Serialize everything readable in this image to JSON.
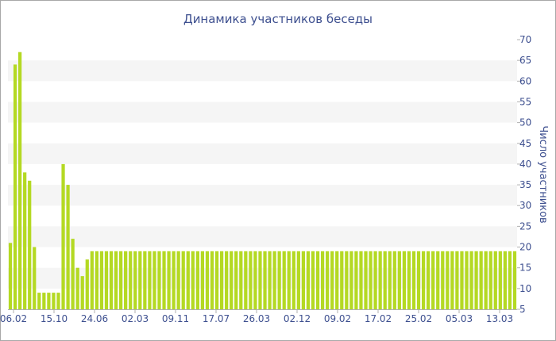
{
  "chart_data": {
    "type": "bar",
    "title": "Динамика участников беседы",
    "xlabel": "",
    "ylabel": "Число участников",
    "ylim": [
      5,
      70
    ],
    "y_ticks": [
      5,
      10,
      15,
      20,
      25,
      30,
      35,
      40,
      45,
      50,
      55,
      60,
      65,
      70
    ],
    "x_tick_labels": [
      "06.02",
      "15.10",
      "24.06",
      "02.03",
      "09.11",
      "17.07",
      "26.03",
      "02.12",
      "09.02",
      "17.02",
      "25.02",
      "05.03",
      "13.03"
    ],
    "grid": "horizontal bands",
    "legend": "none",
    "bar_color": "#b4d923",
    "band_color": "#f5f5f5",
    "text_color": "#3d4f8f",
    "values": [
      21,
      64,
      67,
      38,
      36,
      20,
      9,
      9,
      9,
      9,
      9,
      40,
      35,
      22,
      15,
      13,
      17,
      19,
      19,
      19,
      19,
      19,
      19,
      19,
      19,
      19,
      19,
      19,
      19,
      19,
      19,
      19,
      19,
      19,
      19,
      19,
      19,
      19,
      19,
      19,
      19,
      19,
      19,
      19,
      19,
      19,
      19,
      19,
      19,
      19,
      19,
      19,
      19,
      19,
      19,
      19,
      19,
      19,
      19,
      19,
      19,
      19,
      19,
      19,
      19,
      19,
      19,
      19,
      19,
      19,
      19,
      19,
      19,
      19,
      19,
      19,
      19,
      19,
      19,
      19,
      19,
      19,
      19,
      19,
      19,
      19,
      19,
      19,
      19,
      19,
      19,
      19,
      19,
      19,
      19,
      19,
      19,
      19,
      19,
      19,
      19,
      19,
      19,
      19,
      19,
      19
    ]
  }
}
